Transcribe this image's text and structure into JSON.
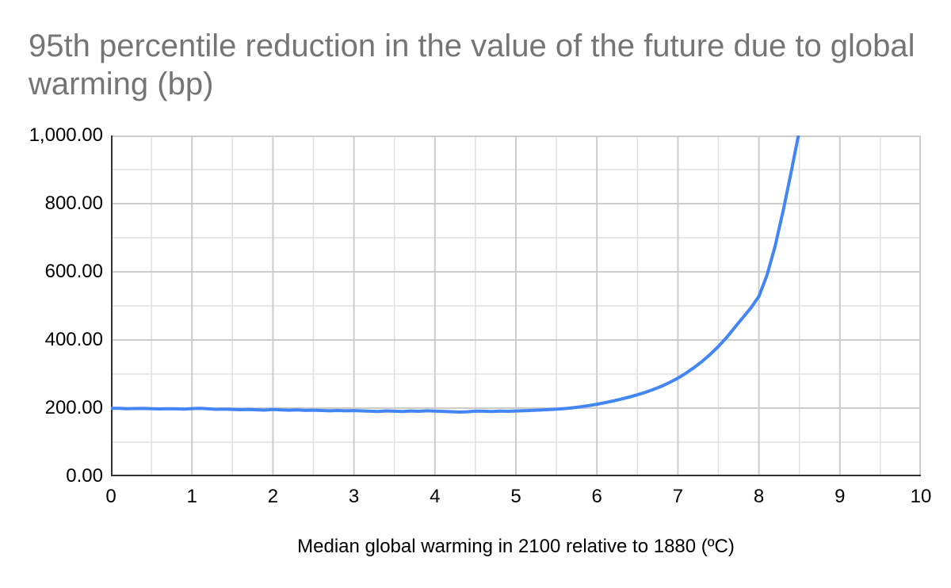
{
  "style": {
    "background": "#ffffff",
    "title_color": "#757575",
    "tick_color": "#000000",
    "axis_color": "#333333",
    "major_grid_color": "#cccccc",
    "minor_grid_color": "#e0e0e0"
  },
  "chart_data": {
    "type": "line",
    "title": "95th percentile reduction in the value of the future due to global warming (bp)",
    "xlabel": "Median global warming in 2100 relative to 1880 (ºC)",
    "ylabel": "",
    "legend": "none",
    "grid": "major and minor, both axes",
    "xlim": [
      0,
      10
    ],
    "ylim": [
      0,
      1000
    ],
    "x_major_step": 1,
    "x_minor_step": 0.5,
    "y_major_step": 200,
    "y_minor_step": 100,
    "x_ticks": [
      {
        "v": 0,
        "label": "0"
      },
      {
        "v": 1,
        "label": "1"
      },
      {
        "v": 2,
        "label": "2"
      },
      {
        "v": 3,
        "label": "3"
      },
      {
        "v": 4,
        "label": "4"
      },
      {
        "v": 5,
        "label": "5"
      },
      {
        "v": 6,
        "label": "6"
      },
      {
        "v": 7,
        "label": "7"
      },
      {
        "v": 8,
        "label": "8"
      },
      {
        "v": 9,
        "label": "9"
      },
      {
        "v": 10,
        "label": "10"
      }
    ],
    "y_ticks": [
      {
        "v": 0,
        "label": "0.00"
      },
      {
        "v": 200,
        "label": "200.00"
      },
      {
        "v": 400,
        "label": "400.00"
      },
      {
        "v": 600,
        "label": "600.00"
      },
      {
        "v": 800,
        "label": "800.00"
      },
      {
        "v": 1000,
        "label": "1,000.00"
      }
    ],
    "series": [
      {
        "color": "#4285f4",
        "stroke_width": 4,
        "x": [
          0.0,
          0.1,
          0.2,
          0.3,
          0.4,
          0.5,
          0.6,
          0.7,
          0.8,
          0.9,
          1.0,
          1.1,
          1.2,
          1.3,
          1.4,
          1.5,
          1.6,
          1.7,
          1.8,
          1.9,
          2.0,
          2.1,
          2.2,
          2.3,
          2.4,
          2.5,
          2.6,
          2.7,
          2.8,
          2.9,
          3.0,
          3.1,
          3.2,
          3.3,
          3.4,
          3.5,
          3.6,
          3.7,
          3.8,
          3.9,
          4.0,
          4.1,
          4.2,
          4.3,
          4.4,
          4.5,
          4.6,
          4.7,
          4.8,
          4.9,
          5.0,
          5.1,
          5.2,
          5.3,
          5.4,
          5.5,
          5.6,
          5.7,
          5.8,
          5.9,
          6.0,
          6.1,
          6.2,
          6.3,
          6.4,
          6.5,
          6.6,
          6.7,
          6.8,
          6.9,
          7.0,
          7.1,
          7.2,
          7.3,
          7.4,
          7.5,
          7.6,
          7.7,
          7.8,
          7.9,
          8.0,
          8.1,
          8.2,
          8.3,
          8.4,
          8.5
        ],
        "y": [
          199.5,
          199.2,
          198.4,
          198.8,
          199.0,
          198.2,
          197.6,
          198.3,
          198.0,
          197.2,
          198.6,
          199.3,
          197.8,
          196.5,
          197.0,
          196.2,
          195.4,
          196.1,
          195.2,
          194.3,
          195.8,
          194.9,
          193.9,
          194.8,
          193.2,
          194.0,
          193.0,
          192.2,
          193.1,
          192.0,
          192.8,
          191.8,
          190.9,
          190.2,
          191.8,
          190.9,
          190.1,
          191.6,
          190.8,
          192.2,
          191.3,
          190.5,
          189.6,
          188.3,
          189.2,
          191.5,
          191.0,
          190.3,
          191.2,
          190.6,
          191.6,
          192.4,
          193.3,
          194.5,
          195.5,
          196.8,
          198.5,
          201.0,
          204.0,
          207.5,
          211.5,
          216.0,
          221.0,
          226.5,
          232.5,
          239.0,
          246.5,
          255.0,
          264.5,
          275.5,
          288.0,
          302.5,
          319.0,
          337.5,
          358.0,
          381.0,
          407.0,
          436.0,
          465.0,
          494.0,
          528.0,
          590.0,
          675.0,
          780.0,
          895.0,
          1015.0
        ]
      }
    ]
  }
}
